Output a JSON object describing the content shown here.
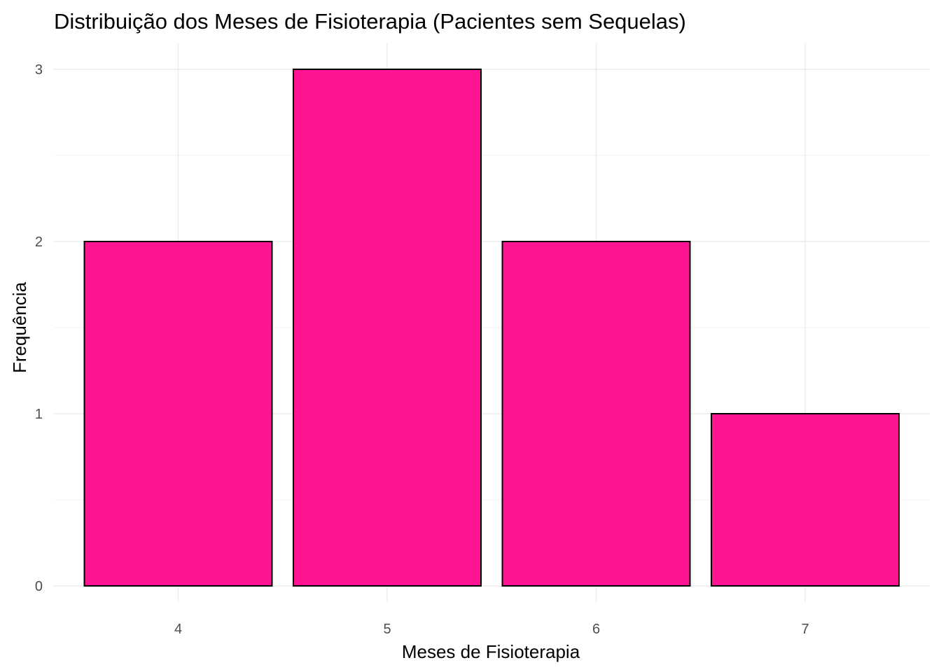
{
  "chart_data": {
    "type": "bar",
    "title": "Distribuição dos Meses de Fisioterapia (Pacientes sem Sequelas)",
    "xlabel": "Meses de Fisioterapia",
    "ylabel": "Frequência",
    "categories": [
      "4",
      "5",
      "6",
      "7"
    ],
    "values": [
      2,
      3,
      2,
      1
    ],
    "y_ticks": [
      0,
      1,
      2,
      3
    ],
    "ylim": [
      0,
      3
    ],
    "grid": true,
    "legend": "none",
    "colors": {
      "bar_fill": "#ff1493",
      "bar_stroke": "#000000"
    }
  }
}
